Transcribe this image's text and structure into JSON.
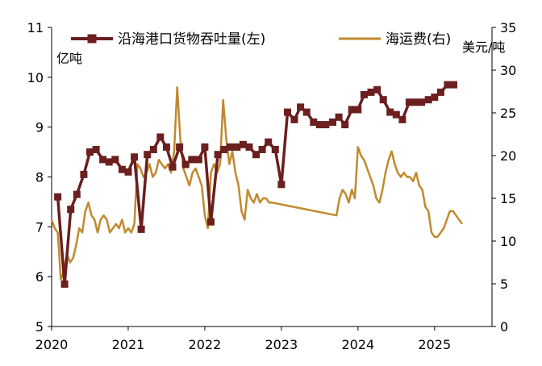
{
  "chart_data": {
    "type": "line",
    "title": "",
    "left_axis": {
      "unit": "亿吨",
      "ylim": [
        5,
        11
      ],
      "ticks": [
        "5",
        "6",
        "7",
        "8",
        "9",
        "10",
        "11"
      ]
    },
    "right_axis": {
      "unit": "美元/吨",
      "ylim": [
        0,
        35
      ],
      "ticks": [
        "0",
        "5",
        "10",
        "15",
        "20",
        "25",
        "30",
        "35"
      ]
    },
    "x_axis": {
      "xlim": [
        2020.0,
        2025.75
      ],
      "ticks": [
        "2020",
        "2021",
        "2022",
        "2023",
        "2024",
        "2025"
      ]
    },
    "legend": {
      "placement": "top"
    },
    "series": [
      {
        "name": "沿海港口货物吞吐量(左)",
        "axis": "left",
        "color": "#6b1f1f",
        "marker": "square",
        "x": [
          2020.08,
          2020.17,
          2020.25,
          2020.33,
          2020.42,
          2020.5,
          2020.58,
          2020.67,
          2020.75,
          2020.83,
          2020.92,
          2021.0,
          2021.08,
          2021.17,
          2021.25,
          2021.33,
          2021.42,
          2021.5,
          2021.58,
          2021.67,
          2021.75,
          2021.83,
          2021.92,
          2022.0,
          2022.08,
          2022.17,
          2022.25,
          2022.33,
          2022.42,
          2022.5,
          2022.58,
          2022.67,
          2022.75,
          2022.83,
          2022.92,
          2023.0,
          2023.08,
          2023.17,
          2023.25,
          2023.33,
          2023.42,
          2023.5,
          2023.58,
          2023.67,
          2023.75,
          2023.83,
          2023.92,
          2024.0,
          2024.08,
          2024.17,
          2024.25,
          2024.33,
          2024.42,
          2024.5,
          2024.58,
          2024.67,
          2024.75,
          2024.83,
          2024.92,
          2025.0,
          2025.08,
          2025.17,
          2025.25
        ],
        "values": [
          7.6,
          5.85,
          7.35,
          7.65,
          8.05,
          8.5,
          8.55,
          8.35,
          8.3,
          8.35,
          8.15,
          8.1,
          8.4,
          6.95,
          8.45,
          8.55,
          8.8,
          8.6,
          8.2,
          8.6,
          8.25,
          8.35,
          8.35,
          8.6,
          7.1,
          8.45,
          8.55,
          8.6,
          8.6,
          8.65,
          8.6,
          8.45,
          8.55,
          8.7,
          8.55,
          7.85,
          9.3,
          9.15,
          9.4,
          9.3,
          9.1,
          9.05,
          9.05,
          9.1,
          9.2,
          9.05,
          9.35,
          9.35,
          9.65,
          9.7,
          9.75,
          9.55,
          9.3,
          9.25,
          9.15,
          9.5,
          9.5,
          9.5,
          9.55,
          9.6,
          9.7,
          9.85,
          9.85
        ]
      },
      {
        "name": "海运费(右)",
        "axis": "right",
        "color": "#c08a2e",
        "marker": "none",
        "x": [
          2020.0,
          2020.04,
          2020.08,
          2020.12,
          2020.16,
          2020.2,
          2020.24,
          2020.28,
          2020.32,
          2020.36,
          2020.4,
          2020.44,
          2020.48,
          2020.52,
          2020.56,
          2020.6,
          2020.64,
          2020.68,
          2020.72,
          2020.76,
          2020.8,
          2020.84,
          2020.88,
          2020.92,
          2020.96,
          2021.0,
          2021.04,
          2021.08,
          2021.12,
          2021.16,
          2021.2,
          2021.24,
          2021.28,
          2021.32,
          2021.36,
          2021.4,
          2021.44,
          2021.48,
          2021.52,
          2021.56,
          2021.6,
          2021.64,
          2021.68,
          2021.72,
          2021.76,
          2021.8,
          2021.84,
          2021.88,
          2021.92,
          2021.96,
          2022.0,
          2022.04,
          2022.08,
          2022.12,
          2022.16,
          2022.2,
          2022.24,
          2022.28,
          2022.32,
          2022.36,
          2022.4,
          2022.44,
          2022.48,
          2022.52,
          2022.56,
          2022.6,
          2022.64,
          2022.68,
          2022.72,
          2022.76,
          2022.8,
          2022.84,
          2022.88,
          2023.72,
          2023.76,
          2023.8,
          2023.84,
          2023.88,
          2023.92,
          2023.96,
          2024.0,
          2024.04,
          2024.08,
          2024.12,
          2024.16,
          2024.2,
          2024.24,
          2024.28,
          2024.32,
          2024.36,
          2024.4,
          2024.44,
          2024.48,
          2024.52,
          2024.56,
          2024.6,
          2024.64,
          2024.68,
          2024.72,
          2024.76,
          2024.8,
          2024.84,
          2024.88,
          2024.92,
          2024.96,
          2025.0,
          2025.04,
          2025.08,
          2025.12,
          2025.16,
          2025.2,
          2025.24,
          2025.28,
          2025.32,
          2025.36
        ],
        "values": [
          12.5,
          11.5,
          11.0,
          5.5,
          6.5,
          8.5,
          7.5,
          8.0,
          9.5,
          11.5,
          11.0,
          13.5,
          14.5,
          13.0,
          12.5,
          11.0,
          12.5,
          13.0,
          12.5,
          11.0,
          11.5,
          12.0,
          11.5,
          12.5,
          11.0,
          11.5,
          11.0,
          12.0,
          19.0,
          18.5,
          17.5,
          18.0,
          19.0,
          17.5,
          18.0,
          19.5,
          19.0,
          18.5,
          19.0,
          18.0,
          20.5,
          28.0,
          22.0,
          18.5,
          17.5,
          16.5,
          18.0,
          18.5,
          17.5,
          16.5,
          13.0,
          11.5,
          18.0,
          19.0,
          18.0,
          19.0,
          26.5,
          22.0,
          19.0,
          20.5,
          18.0,
          16.5,
          13.5,
          12.5,
          16.0,
          15.0,
          14.5,
          15.5,
          14.5,
          15.0,
          15.0,
          14.5,
          14.5,
          13.0,
          15.0,
          16.0,
          15.5,
          14.5,
          16.0,
          15.0,
          21.0,
          20.0,
          19.5,
          18.5,
          17.5,
          16.5,
          15.0,
          14.5,
          16.0,
          18.0,
          19.5,
          20.5,
          19.0,
          18.0,
          17.5,
          18.0,
          17.5,
          17.5,
          17.0,
          18.0,
          16.5,
          16.0,
          14.0,
          13.5,
          11.0,
          10.5,
          10.5,
          11.0,
          11.5,
          12.5,
          13.5,
          13.5,
          13.0,
          12.5,
          12.0
        ]
      }
    ]
  }
}
